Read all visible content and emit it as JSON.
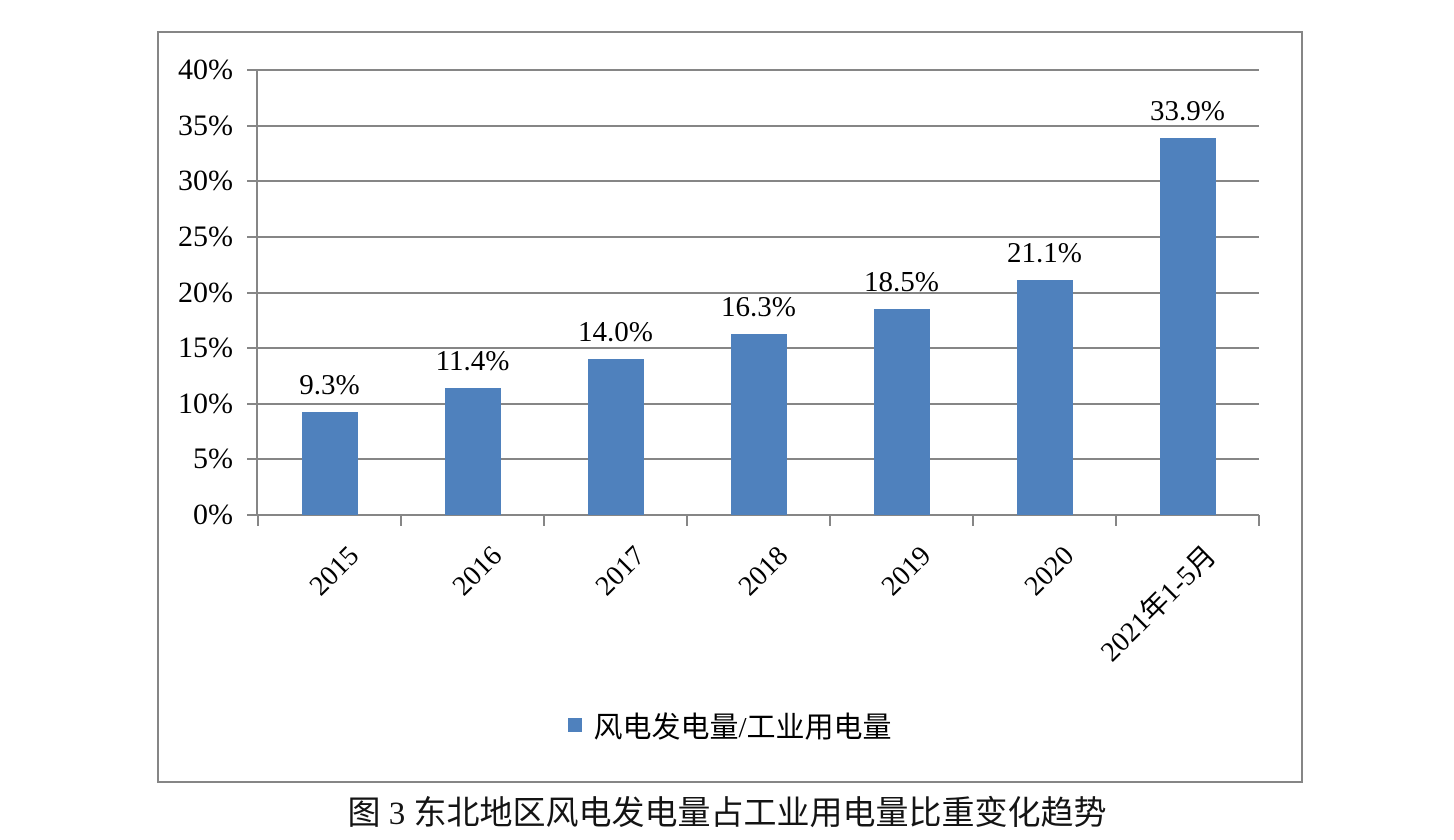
{
  "figure": {
    "caption": "图 3  东北地区风电发电量占工业用电量比重变化趋势"
  },
  "chart_data": {
    "type": "bar",
    "title": "图 3 东北地区风电发电量占工业用电量比重变化趋势",
    "xlabel": "",
    "ylabel": "",
    "categories": [
      "2015",
      "2016",
      "2017",
      "2018",
      "2019",
      "2020",
      "2021年1-5月"
    ],
    "values": [
      9.3,
      11.4,
      14.0,
      16.3,
      18.5,
      21.1,
      33.9
    ],
    "data_labels": [
      "9.3%",
      "11.4%",
      "14.0%",
      "16.3%",
      "18.5%",
      "21.1%",
      "33.9%"
    ],
    "ylim": [
      0,
      40
    ],
    "ytick_step": 5,
    "ytick_labels": [
      "0%",
      "5%",
      "10%",
      "15%",
      "20%",
      "25%",
      "30%",
      "35%",
      "40%"
    ],
    "grid": true,
    "x_tick_marks": "category-boundaries",
    "x_label_rotation_deg": 45,
    "legend": {
      "position": "bottom",
      "entries": [
        "风电发电量/工业用电量"
      ]
    },
    "bar_color": "#4F81BD",
    "axis_color": "#868686",
    "text_color": "#000000",
    "background": "#FFFFFF"
  }
}
